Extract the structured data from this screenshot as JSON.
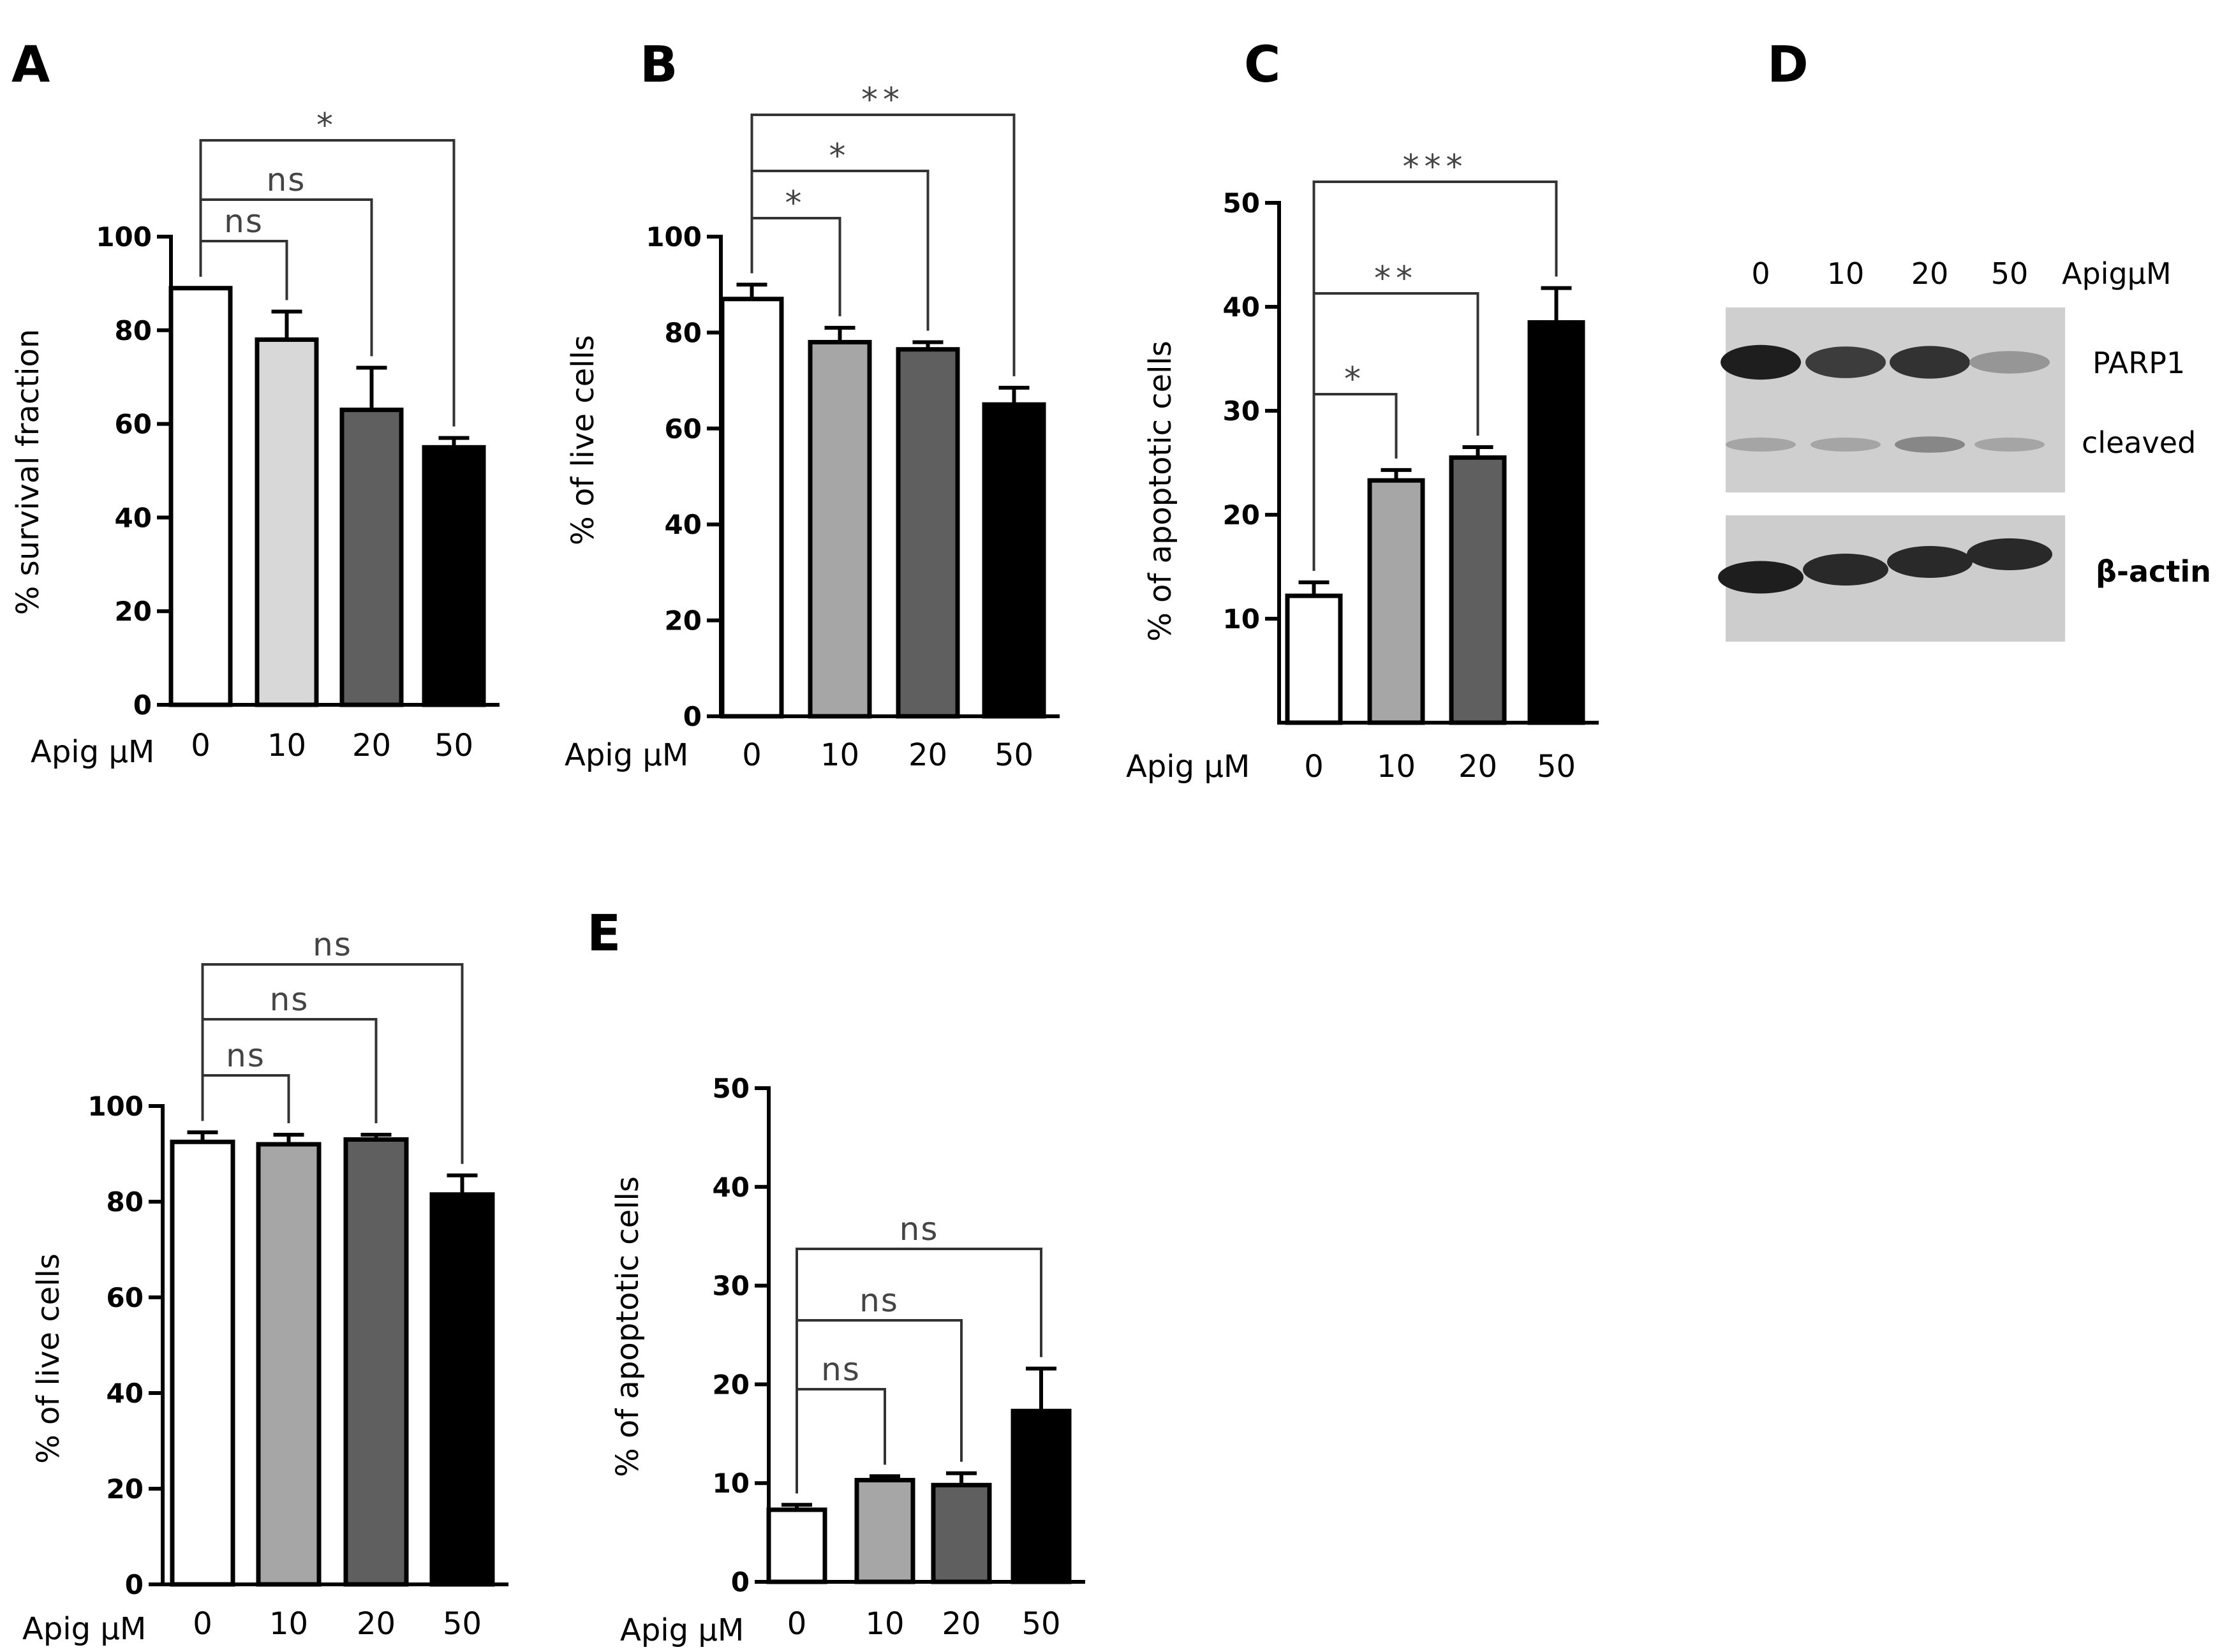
{
  "figure": {
    "colors": {
      "axis": "#000000",
      "bar0": "#ffffff",
      "bar10_light": "#d8d8d8",
      "bar10": "#a6a6a6",
      "bar20": "#5f5f5f",
      "bar50": "#000000",
      "annotation": "#444444"
    }
  },
  "chart_data": [
    {
      "panel": "A",
      "type": "bar",
      "ylabel": "% survival fraction",
      "xlabel": "Apig µM",
      "categories": [
        "0",
        "10",
        "20",
        "50"
      ],
      "values": [
        89,
        78,
        63,
        55
      ],
      "errors": [
        0,
        6,
        9,
        2
      ],
      "ylim": [
        0,
        100
      ],
      "yticks": [
        "0",
        "20",
        "40",
        "60",
        "80",
        "100"
      ],
      "comparisons": [
        {
          "from": "0",
          "to": "10",
          "label": "ns"
        },
        {
          "from": "0",
          "to": "20",
          "label": "ns"
        },
        {
          "from": "0",
          "to": "50",
          "label": "*"
        }
      ]
    },
    {
      "panel": "B",
      "type": "bar",
      "ylabel": "% of live cells",
      "xlabel": "Apig µM",
      "categories": [
        "0",
        "10",
        "20",
        "50"
      ],
      "values": [
        87,
        78,
        76.5,
        65
      ],
      "errors": [
        3,
        3,
        1.5,
        3.5
      ],
      "ylim": [
        0,
        100
      ],
      "yticks": [
        "0",
        "20",
        "40",
        "60",
        "80",
        "100"
      ],
      "comparisons": [
        {
          "from": "0",
          "to": "10",
          "label": "*"
        },
        {
          "from": "0",
          "to": "20",
          "label": "*"
        },
        {
          "from": "0",
          "to": "50",
          "label": "**"
        }
      ]
    },
    {
      "panel": "C",
      "type": "bar",
      "ylabel": "% of apoptotic cells",
      "xlabel": "Apig µM",
      "categories": [
        "0",
        "10",
        "20",
        "50"
      ],
      "values": [
        12.2,
        23.3,
        25.5,
        38.5
      ],
      "errors": [
        1.3,
        1,
        1,
        3.3
      ],
      "ylim": [
        0,
        50
      ],
      "yticks": [
        "10",
        "20",
        "30",
        "40",
        "50"
      ],
      "comparisons": [
        {
          "from": "0",
          "to": "10",
          "label": "*"
        },
        {
          "from": "0",
          "to": "20",
          "label": "**"
        },
        {
          "from": "0",
          "to": "50",
          "label": "***"
        }
      ]
    },
    {
      "panel": "",
      "type": "bar",
      "ylabel": "% of live cells",
      "xlabel": "Apig µM",
      "categories": [
        "0",
        "10",
        "20",
        "50"
      ],
      "values": [
        92.5,
        92,
        93,
        81.5
      ],
      "errors": [
        2,
        2,
        1,
        4
      ],
      "ylim": [
        0,
        100
      ],
      "yticks": [
        "0",
        "20",
        "40",
        "60",
        "80",
        "100"
      ],
      "comparisons": [
        {
          "from": "0",
          "to": "10",
          "label": "ns"
        },
        {
          "from": "0",
          "to": "20",
          "label": "ns"
        },
        {
          "from": "0",
          "to": "50",
          "label": "ns"
        }
      ]
    },
    {
      "panel": "E",
      "type": "bar",
      "ylabel": "% of apoptotic cells",
      "xlabel": "Apig µM",
      "categories": [
        "0",
        "10",
        "20",
        "50"
      ],
      "values": [
        7.3,
        10.3,
        9.8,
        17.3
      ],
      "errors": [
        0.5,
        0.4,
        1.2,
        4.3
      ],
      "ylim": [
        0,
        50
      ],
      "yticks": [
        "0",
        "10",
        "20",
        "30",
        "40",
        "50"
      ],
      "comparisons": [
        {
          "from": "0",
          "to": "10",
          "label": "ns"
        },
        {
          "from": "0",
          "to": "20",
          "label": "ns"
        },
        {
          "from": "0",
          "to": "50",
          "label": "ns"
        }
      ]
    }
  ],
  "blot": {
    "panel": "D",
    "lanes": [
      "0",
      "10",
      "20",
      "50"
    ],
    "lane_header": "ApigµM",
    "row_labels": {
      "parp1": "PARP1",
      "cleaved": "cleaved",
      "actin": "β-actin"
    },
    "parp1_intensity": [
      0.95,
      0.8,
      0.85,
      0.35
    ],
    "cleaved_intensity": [
      0.25,
      0.25,
      0.4,
      0.25
    ],
    "actin_intensity": [
      0.95,
      0.9,
      0.9,
      0.9
    ]
  }
}
